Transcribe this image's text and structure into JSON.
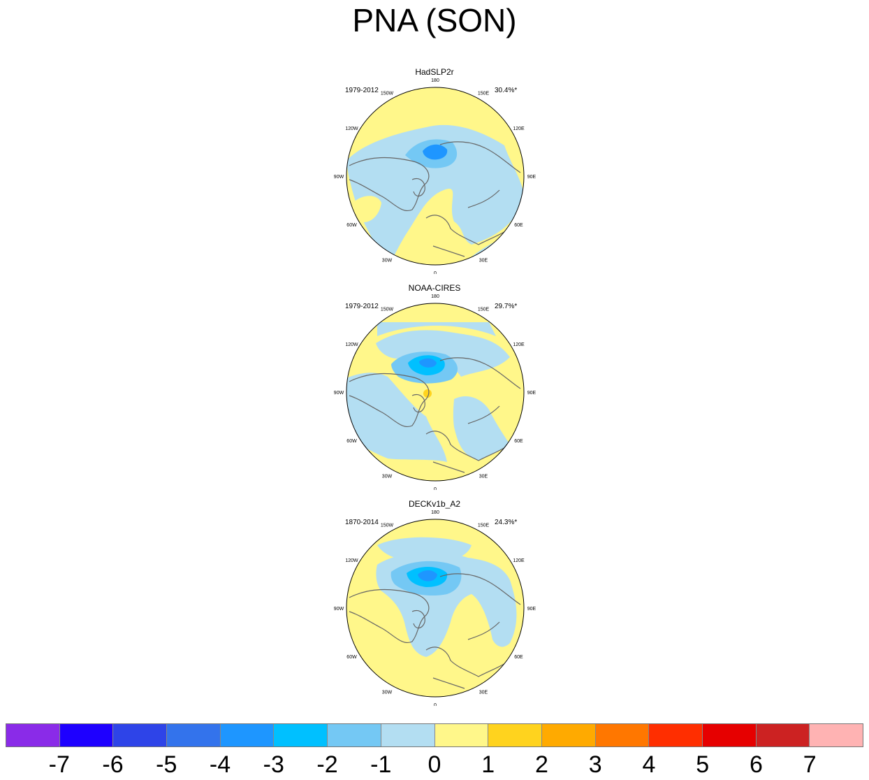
{
  "title": "PNA (SON)",
  "panels": [
    {
      "title": "HadSLP2r",
      "period": "1979-2012",
      "variance": "30.4%*"
    },
    {
      "title": "NOAA-CIRES",
      "period": "1979-2012",
      "variance": "29.7%*"
    },
    {
      "title": "DECKv1b_A2",
      "period": "1870-2014",
      "variance": "24.3%*"
    }
  ],
  "longitude_labels": [
    "180",
    "150E",
    "120E",
    "90E",
    "60E",
    "30E",
    "0",
    "30W",
    "60W",
    "90W",
    "120W",
    "150W"
  ],
  "colorbar": {
    "colors": [
      "#8a2be8",
      "#1e00ff",
      "#2e44e8",
      "#3373ec",
      "#1e96ff",
      "#00c0ff",
      "#74c8f4",
      "#b3def2",
      "#fff78a",
      "#ffd31e",
      "#ffaa00",
      "#ff7700",
      "#ff2e00",
      "#e60000",
      "#cc2222",
      "#ffb3b3"
    ],
    "labels": [
      "-7",
      "-6",
      "-5",
      "-4",
      "-3",
      "-2",
      "-1",
      "0",
      "1",
      "2",
      "3",
      "4",
      "5",
      "6",
      "7"
    ]
  },
  "colors": {
    "neutral_positive": "#fff78a",
    "neutral_negative": "#b3def2",
    "negative_moderate": "#74c8f4",
    "negative_strong": "#00c0ff",
    "negative_stronger": "#1e96ff",
    "positive_moderate": "#ffd31e",
    "coastline": "#666666"
  }
}
